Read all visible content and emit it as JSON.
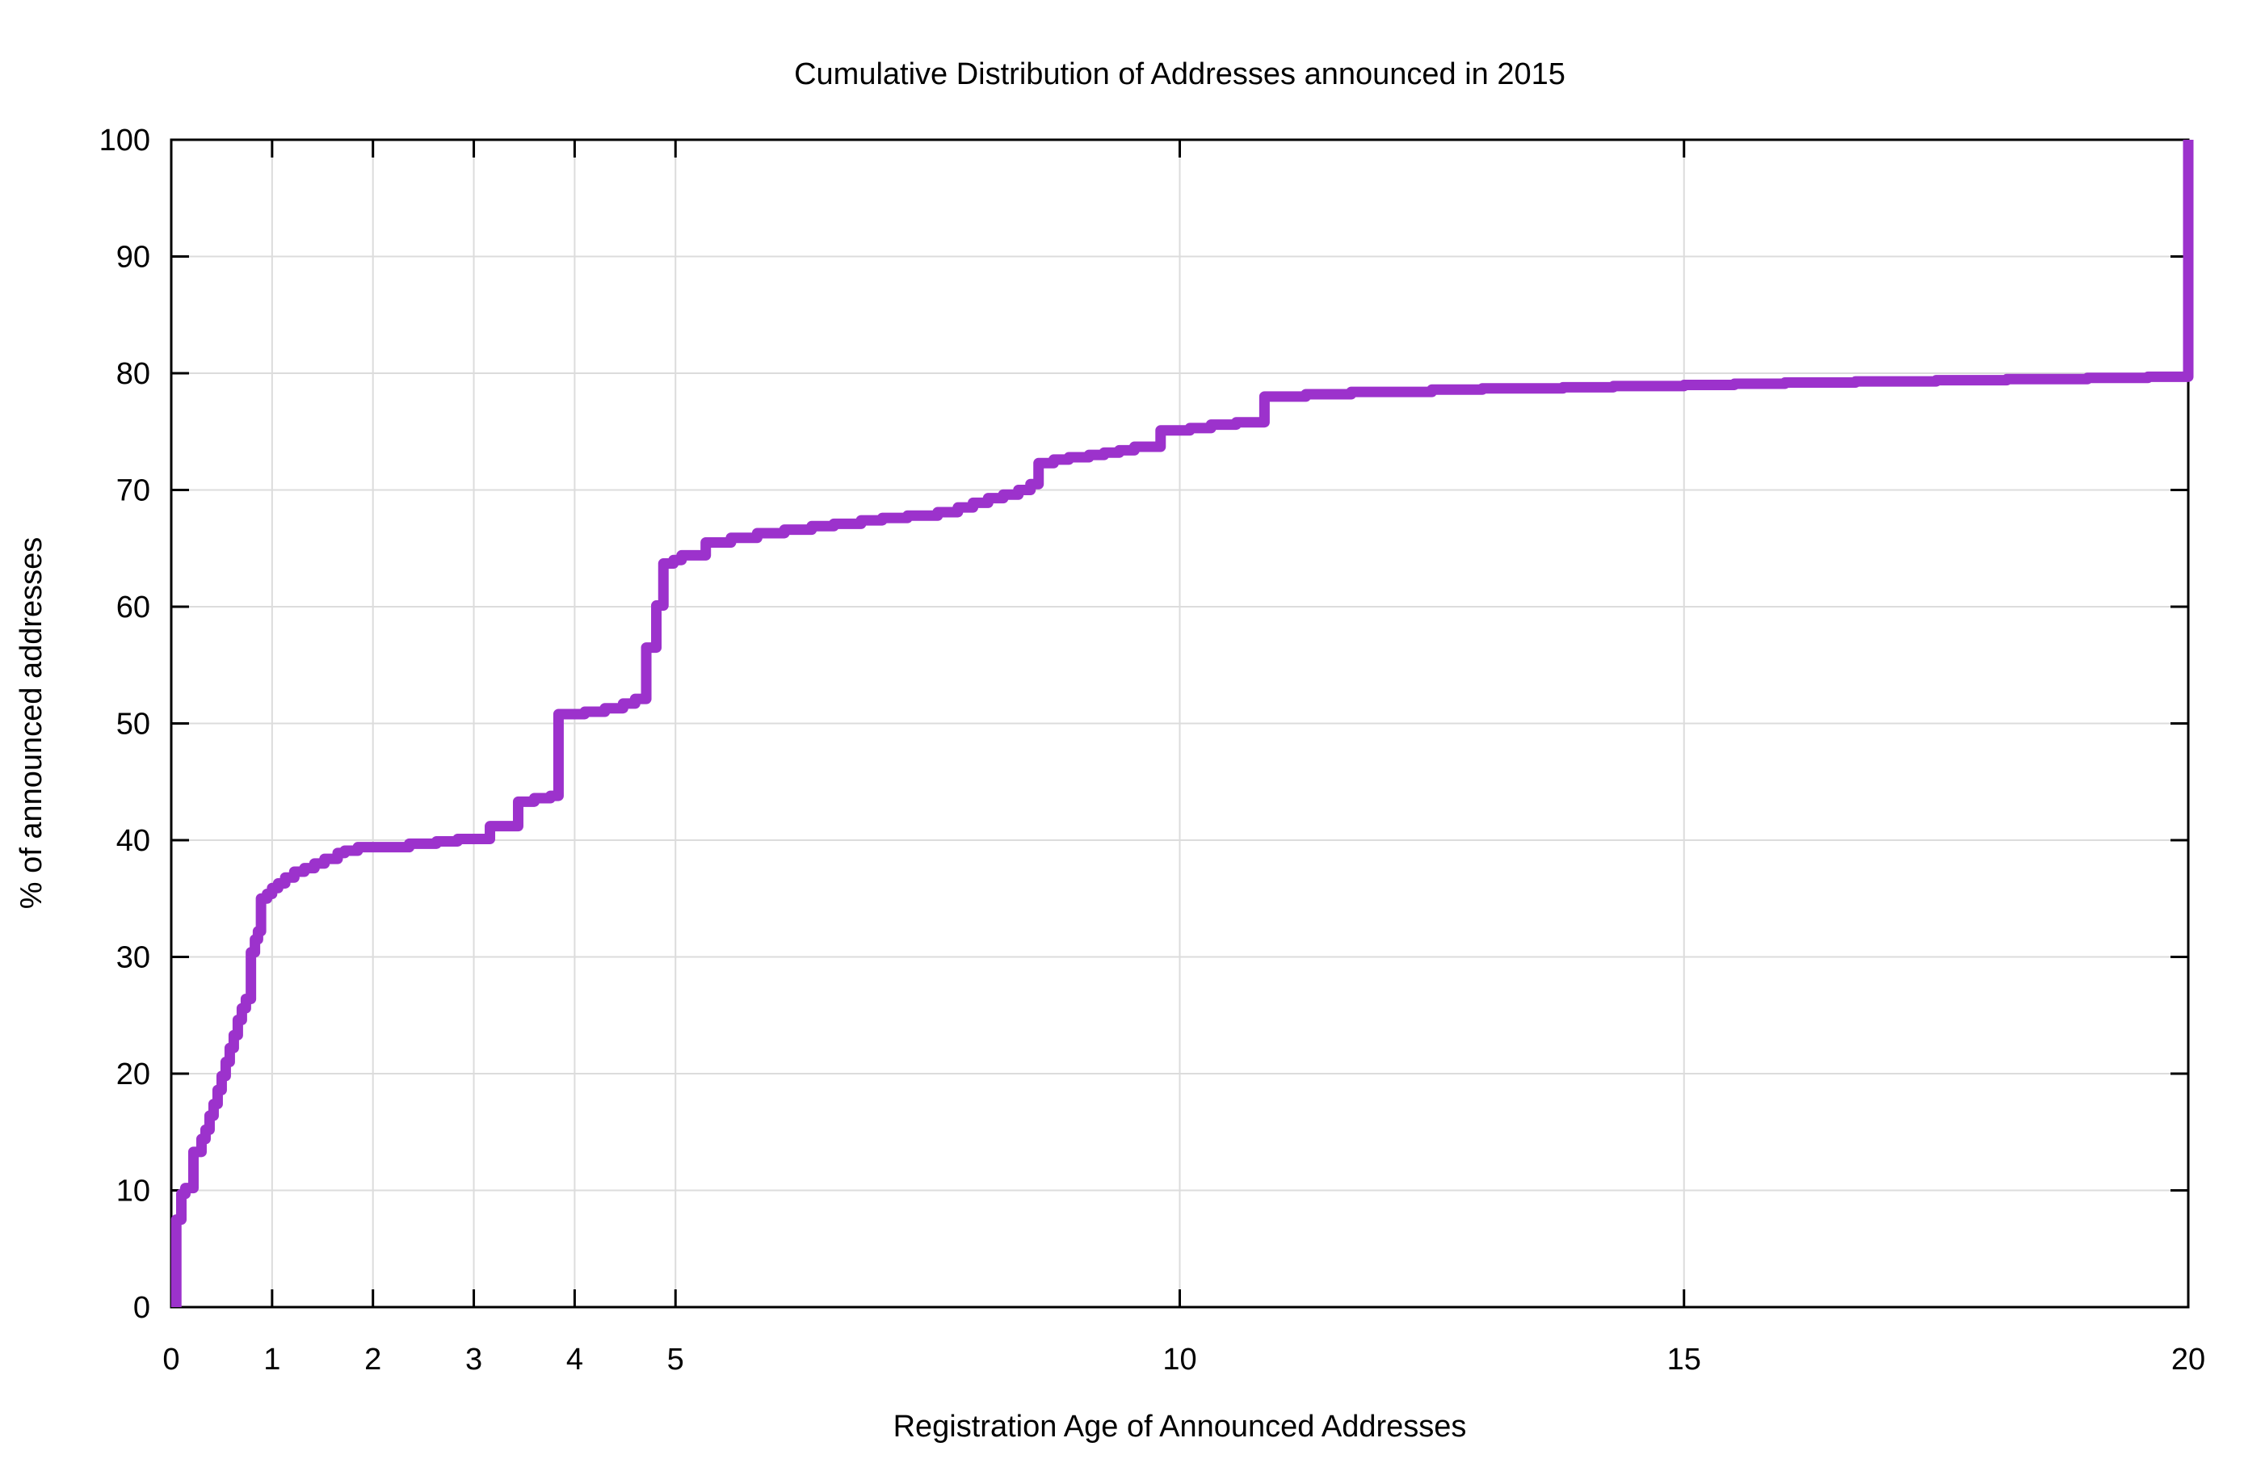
{
  "title": "Cumulative Distribution of Addresses announced in 2015",
  "x_axis": {
    "label": "Registration Age of Announced Addresses",
    "range": [
      0,
      20
    ],
    "tick_labels": [
      "0",
      "1",
      "2",
      "3",
      "4",
      "5",
      "10",
      "15",
      "20"
    ],
    "tick_values": [
      0,
      1,
      2,
      3,
      4,
      5,
      10,
      15,
      20
    ]
  },
  "y_axis": {
    "label": "% of announced addresses",
    "range": [
      0,
      100
    ],
    "tick_labels": [
      "0",
      "10",
      "20",
      "30",
      "40",
      "50",
      "60",
      "70",
      "80",
      "90",
      "100"
    ],
    "tick_values": [
      0,
      10,
      20,
      30,
      40,
      50,
      60,
      70,
      80,
      90,
      100
    ]
  },
  "colors": {
    "line": "#9c32cc",
    "grid": "#dcdcdc",
    "axis": "#000000",
    "background": "#ffffff"
  },
  "chart_data": {
    "type": "line",
    "subtype": "cumulative-step-cdf",
    "title": "Cumulative Distribution of Addresses announced in 2015",
    "xlabel": "Registration Age of Announced Addresses",
    "ylabel": "% of announced addresses",
    "xlim": [
      0,
      20
    ],
    "ylim": [
      0,
      100
    ],
    "grid": true,
    "legend": "none",
    "interpolation": "step: level becomes y at x, flat until next x",
    "steps": [
      [
        0.05,
        0
      ],
      [
        0.05,
        7.5
      ],
      [
        0.1,
        9.7
      ],
      [
        0.14,
        10.2
      ],
      [
        0.22,
        13.3
      ],
      [
        0.3,
        14.4
      ],
      [
        0.34,
        15.2
      ],
      [
        0.38,
        16.4
      ],
      [
        0.42,
        17.4
      ],
      [
        0.46,
        18.6
      ],
      [
        0.5,
        19.8
      ],
      [
        0.54,
        21.0
      ],
      [
        0.58,
        22.2
      ],
      [
        0.62,
        23.3
      ],
      [
        0.66,
        24.6
      ],
      [
        0.7,
        25.6
      ],
      [
        0.74,
        26.4
      ],
      [
        0.79,
        30.4
      ],
      [
        0.83,
        31.5
      ],
      [
        0.86,
        32.2
      ],
      [
        0.89,
        35.0
      ],
      [
        0.95,
        35.4
      ],
      [
        1.0,
        35.9
      ],
      [
        1.06,
        36.3
      ],
      [
        1.13,
        36.8
      ],
      [
        1.22,
        37.3
      ],
      [
        1.32,
        37.6
      ],
      [
        1.42,
        38.0
      ],
      [
        1.52,
        38.4
      ],
      [
        1.65,
        38.9
      ],
      [
        1.72,
        39.1
      ],
      [
        1.85,
        39.4
      ],
      [
        2.36,
        39.7
      ],
      [
        2.63,
        39.9
      ],
      [
        2.84,
        40.1
      ],
      [
        3.16,
        41.2
      ],
      [
        3.44,
        43.3
      ],
      [
        3.6,
        43.6
      ],
      [
        3.76,
        43.8
      ],
      [
        3.84,
        50.8
      ],
      [
        4.1,
        51.0
      ],
      [
        4.3,
        51.3
      ],
      [
        4.48,
        51.7
      ],
      [
        4.6,
        52.1
      ],
      [
        4.71,
        56.5
      ],
      [
        4.81,
        60.1
      ],
      [
        4.88,
        63.7
      ],
      [
        4.98,
        64.0
      ],
      [
        5.06,
        64.4
      ],
      [
        5.3,
        65.5
      ],
      [
        5.55,
        65.9
      ],
      [
        5.81,
        66.3
      ],
      [
        6.08,
        66.6
      ],
      [
        6.35,
        66.9
      ],
      [
        6.57,
        67.1
      ],
      [
        6.84,
        67.4
      ],
      [
        7.05,
        67.6
      ],
      [
        7.3,
        67.8
      ],
      [
        7.6,
        68.1
      ],
      [
        7.8,
        68.5
      ],
      [
        7.95,
        68.9
      ],
      [
        8.1,
        69.3
      ],
      [
        8.25,
        69.6
      ],
      [
        8.4,
        70.0
      ],
      [
        8.52,
        70.5
      ],
      [
        8.6,
        72.3
      ],
      [
        8.75,
        72.6
      ],
      [
        8.9,
        72.8
      ],
      [
        9.1,
        73.0
      ],
      [
        9.25,
        73.2
      ],
      [
        9.4,
        73.4
      ],
      [
        9.55,
        73.7
      ],
      [
        9.81,
        75.1
      ],
      [
        10.1,
        75.3
      ],
      [
        10.31,
        75.6
      ],
      [
        10.56,
        75.8
      ],
      [
        10.84,
        78.0
      ],
      [
        11.25,
        78.2
      ],
      [
        11.7,
        78.4
      ],
      [
        12.5,
        78.6
      ],
      [
        13.0,
        78.7
      ],
      [
        13.8,
        78.8
      ],
      [
        14.3,
        78.9
      ],
      [
        15.0,
        79.0
      ],
      [
        15.5,
        79.1
      ],
      [
        16.0,
        79.2
      ],
      [
        16.7,
        79.3
      ],
      [
        17.5,
        79.4
      ],
      [
        18.2,
        79.5
      ],
      [
        19.0,
        79.6
      ],
      [
        19.6,
        79.7
      ],
      [
        20.0,
        100
      ]
    ]
  }
}
